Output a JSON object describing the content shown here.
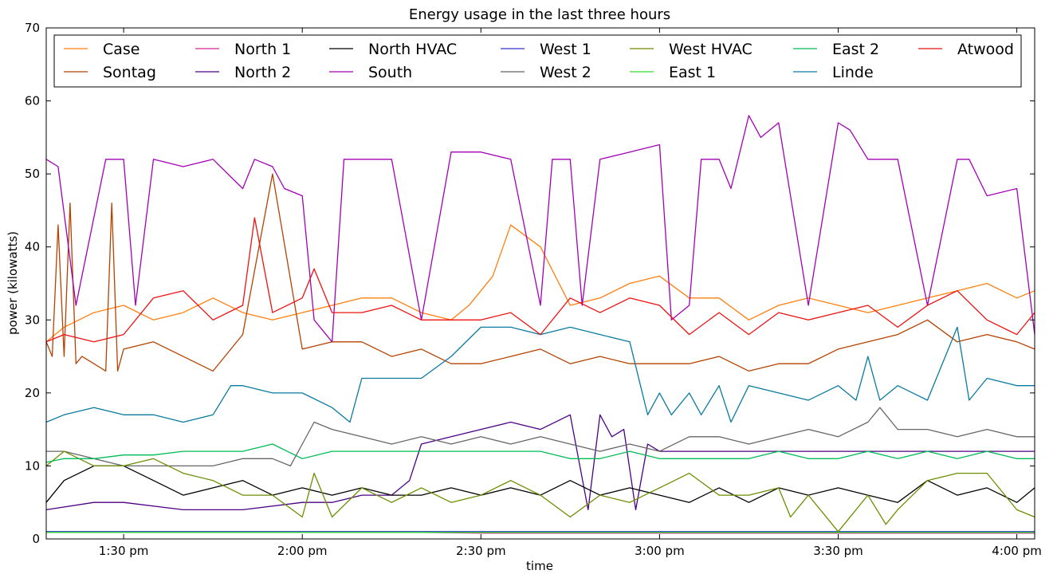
{
  "chart_data": {
    "type": "line",
    "title": "Energy usage in the last three hours",
    "xlabel": "time",
    "ylabel": "power (kilowatts)",
    "ylim": [
      0,
      70
    ],
    "xlim_minutes_after_1pm": [
      17,
      183
    ],
    "x_ticks": [
      {
        "minute": 30,
        "label": "1:30 pm"
      },
      {
        "minute": 60,
        "label": "2:00 pm"
      },
      {
        "minute": 90,
        "label": "2:30 pm"
      },
      {
        "minute": 120,
        "label": "3:00 pm"
      },
      {
        "minute": 150,
        "label": "3:30 pm"
      },
      {
        "minute": 180,
        "label": "4:00 pm"
      }
    ],
    "y_ticks": [
      0,
      10,
      20,
      30,
      40,
      50,
      60,
      70
    ],
    "grid": false,
    "legend_position": "top",
    "legend_columns": 7,
    "series": [
      {
        "name": "Case",
        "color": "#ff7f0e",
        "x": [
          17,
          20,
          25,
          30,
          35,
          40,
          45,
          50,
          55,
          60,
          65,
          70,
          75,
          80,
          85,
          88,
          90,
          92,
          95,
          100,
          105,
          110,
          115,
          120,
          125,
          130,
          135,
          140,
          145,
          150,
          155,
          160,
          165,
          170,
          175,
          180,
          183
        ],
        "y": [
          27,
          29,
          31,
          32,
          30,
          31,
          33,
          31,
          30,
          31,
          32,
          33,
          33,
          31,
          30,
          32,
          34,
          36,
          43,
          40,
          32,
          33,
          35,
          36,
          33,
          33,
          30,
          32,
          33,
          32,
          31,
          32,
          33,
          34,
          35,
          33,
          34
        ]
      },
      {
        "name": "Sontag",
        "color": "#b44200",
        "x": [
          17,
          18,
          19,
          20,
          21,
          22,
          23,
          25,
          27,
          28,
          29,
          30,
          35,
          40,
          45,
          48,
          50,
          55,
          60,
          65,
          70,
          75,
          80,
          85,
          90,
          95,
          100,
          105,
          110,
          115,
          120,
          125,
          130,
          135,
          140,
          145,
          150,
          155,
          160,
          165,
          170,
          175,
          180,
          183
        ],
        "y": [
          27,
          25,
          43,
          25,
          46,
          24,
          25,
          24,
          23,
          46,
          23,
          26,
          27,
          25,
          23,
          26,
          28,
          50,
          26,
          27,
          27,
          25,
          26,
          24,
          24,
          25,
          26,
          24,
          25,
          24,
          24,
          24,
          25,
          23,
          24,
          24,
          26,
          27,
          28,
          30,
          27,
          28,
          27,
          26
        ]
      },
      {
        "name": "North 1",
        "color": "#d62790",
        "x": [
          17,
          80,
          90,
          100,
          110,
          120,
          183
        ],
        "y": [
          0.9,
          0.9,
          0.8,
          0.8,
          0.8,
          0.8,
          0.8
        ]
      },
      {
        "name": "North 2",
        "color": "#4b0082",
        "x": [
          17,
          25,
          30,
          40,
          50,
          60,
          65,
          70,
          75,
          78,
          80,
          85,
          90,
          95,
          100,
          105,
          108,
          110,
          112,
          114,
          116,
          118,
          120,
          125,
          130,
          135,
          140,
          145,
          150,
          155,
          160,
          165,
          170,
          175,
          180,
          183
        ],
        "y": [
          4,
          5,
          5,
          4,
          4,
          5,
          5,
          6,
          6,
          8,
          13,
          14,
          15,
          16,
          15,
          17,
          4,
          17,
          14,
          15,
          4,
          13,
          12,
          12,
          12,
          12,
          12,
          12,
          12,
          12,
          12,
          12,
          12,
          12,
          12,
          12
        ]
      },
      {
        "name": "North HVAC",
        "color": "#000000",
        "x": [
          17,
          20,
          25,
          30,
          35,
          40,
          45,
          50,
          55,
          60,
          65,
          70,
          75,
          80,
          85,
          90,
          95,
          100,
          105,
          110,
          115,
          120,
          125,
          130,
          135,
          140,
          145,
          150,
          155,
          160,
          165,
          170,
          175,
          180,
          183
        ],
        "y": [
          5,
          8,
          10,
          10,
          8,
          6,
          7,
          8,
          6,
          7,
          6,
          7,
          6,
          6,
          7,
          6,
          7,
          6,
          8,
          6,
          7,
          6,
          5,
          7,
          5,
          7,
          6,
          7,
          6,
          5,
          8,
          6,
          7,
          5,
          7
        ]
      },
      {
        "name": "South",
        "color": "#a300b5",
        "x": [
          17,
          19,
          22,
          27,
          30,
          32,
          35,
          40,
          45,
          50,
          52,
          55,
          57,
          60,
          62,
          65,
          67,
          70,
          72,
          75,
          80,
          85,
          87,
          90,
          95,
          100,
          102,
          105,
          107,
          110,
          115,
          120,
          122,
          125,
          127,
          130,
          132,
          135,
          137,
          140,
          145,
          150,
          152,
          155,
          157,
          160,
          165,
          170,
          172,
          175,
          180,
          183
        ],
        "y": [
          52,
          51,
          32,
          52,
          52,
          32,
          52,
          51,
          52,
          48,
          52,
          51,
          48,
          47,
          30,
          27,
          52,
          52,
          52,
          52,
          30,
          53,
          53,
          53,
          52,
          32,
          52,
          52,
          32,
          52,
          53,
          54,
          30,
          32,
          52,
          52,
          48,
          58,
          55,
          57,
          32,
          57,
          56,
          52,
          52,
          52,
          32,
          52,
          52,
          47,
          48,
          28
        ]
      },
      {
        "name": "West 1",
        "color": "#3333cc",
        "x": [
          17,
          183
        ],
        "y": [
          1,
          1
        ]
      },
      {
        "name": "West 2",
        "color": "#666666",
        "x": [
          17,
          20,
          25,
          30,
          35,
          40,
          45,
          50,
          55,
          58,
          60,
          62,
          65,
          70,
          75,
          80,
          85,
          90,
          95,
          100,
          105,
          110,
          115,
          120,
          125,
          130,
          135,
          140,
          145,
          150,
          155,
          157,
          160,
          165,
          170,
          175,
          180,
          183
        ],
        "y": [
          12,
          12,
          11,
          10,
          10,
          10,
          10,
          11,
          11,
          10,
          13,
          16,
          15,
          14,
          13,
          14,
          13,
          14,
          13,
          14,
          13,
          12,
          13,
          12,
          14,
          14,
          13,
          14,
          15,
          14,
          16,
          18,
          15,
          15,
          14,
          15,
          14,
          14
        ]
      },
      {
        "name": "West HVAC",
        "color": "#6b8e00",
        "x": [
          17,
          20,
          25,
          30,
          35,
          40,
          45,
          50,
          55,
          60,
          62,
          65,
          70,
          75,
          80,
          85,
          90,
          95,
          100,
          105,
          110,
          115,
          120,
          125,
          130,
          135,
          140,
          142,
          145,
          150,
          155,
          158,
          160,
          165,
          170,
          175,
          180,
          183
        ],
        "y": [
          10,
          12,
          10,
          10,
          11,
          9,
          8,
          6,
          6,
          3,
          9,
          3,
          7,
          5,
          7,
          5,
          6,
          8,
          6,
          3,
          6,
          5,
          7,
          9,
          6,
          6,
          7,
          3,
          6,
          1,
          6,
          2,
          4,
          8,
          9,
          9,
          4,
          3
        ]
      },
      {
        "name": "East 1",
        "color": "#33dd33",
        "x": [
          17,
          183
        ],
        "y": [
          0.9,
          0.9
        ]
      },
      {
        "name": "East 2",
        "color": "#00bb55",
        "x": [
          17,
          20,
          25,
          30,
          35,
          40,
          45,
          50,
          55,
          60,
          65,
          70,
          75,
          80,
          85,
          90,
          95,
          100,
          105,
          110,
          115,
          120,
          125,
          130,
          135,
          140,
          145,
          150,
          155,
          160,
          165,
          170,
          175,
          180,
          183
        ],
        "y": [
          10.5,
          11,
          11,
          11.5,
          11.5,
          12,
          12,
          12,
          13,
          11,
          12,
          12,
          12,
          12,
          12,
          12,
          12,
          12,
          11,
          11,
          12,
          11,
          11,
          11,
          11,
          12,
          11,
          11,
          12,
          11,
          12,
          11,
          12,
          11,
          11
        ]
      },
      {
        "name": "Linde",
        "color": "#0a7aa0",
        "x": [
          17,
          20,
          25,
          30,
          35,
          40,
          45,
          48,
          50,
          55,
          60,
          65,
          68,
          70,
          75,
          80,
          85,
          90,
          95,
          100,
          105,
          110,
          115,
          118,
          120,
          122,
          125,
          127,
          130,
          132,
          135,
          140,
          145,
          150,
          153,
          155,
          157,
          160,
          165,
          170,
          172,
          175,
          180,
          183
        ],
        "y": [
          16,
          17,
          18,
          17,
          17,
          16,
          17,
          21,
          21,
          20,
          20,
          18,
          16,
          22,
          22,
          22,
          25,
          29,
          29,
          28,
          29,
          28,
          27,
          17,
          20,
          17,
          20,
          17,
          21,
          16,
          21,
          20,
          19,
          21,
          19,
          25,
          19,
          21,
          19,
          29,
          19,
          22,
          21,
          21
        ]
      },
      {
        "name": "Atwood",
        "color": "#ee1111",
        "x": [
          17,
          20,
          25,
          30,
          35,
          40,
          45,
          50,
          52,
          55,
          60,
          62,
          65,
          70,
          75,
          80,
          85,
          90,
          95,
          100,
          105,
          110,
          115,
          120,
          125,
          130,
          135,
          140,
          145,
          150,
          155,
          160,
          165,
          170,
          175,
          180,
          183
        ],
        "y": [
          27,
          28,
          27,
          28,
          33,
          34,
          30,
          32,
          44,
          31,
          33,
          37,
          31,
          31,
          32,
          30,
          30,
          30,
          31,
          28,
          33,
          31,
          33,
          32,
          28,
          31,
          28,
          31,
          30,
          31,
          32,
          29,
          32,
          34,
          30,
          28,
          31
        ]
      }
    ]
  }
}
